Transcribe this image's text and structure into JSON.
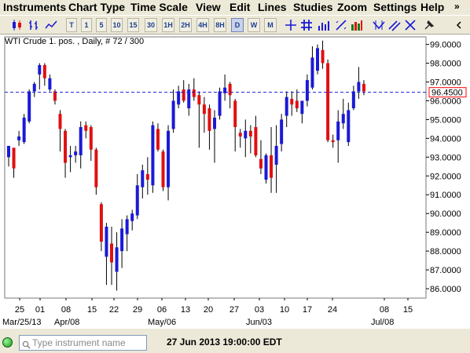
{
  "menu": {
    "items": [
      "Instruments",
      "Chart Type",
      "Time Scale",
      "View",
      "Edit",
      "Lines",
      "Studies",
      "Zoom",
      "Settings",
      "Help"
    ],
    "overflow_icon": "chevrons-right-icon"
  },
  "toolbar": {
    "timeframes": [
      "T",
      "1",
      "5",
      "10",
      "15",
      "30",
      "1H",
      "2H",
      "4H",
      "8H",
      "D",
      "W",
      "M"
    ],
    "active_timeframe": "D",
    "icons": [
      "candlestick-chart-icon",
      "bar-chart-icon",
      "line-chart-icon",
      "crosshair-icon",
      "grid-icon",
      "volume-icon",
      "draw-line-icon",
      "fibonacci-icon",
      "trend-icon",
      "parallel-lines-icon",
      "pin-icon"
    ]
  },
  "chart": {
    "title": "WTI Crude 1. pos. , Daily, # 72 / 300",
    "current_price_label": "96.4500",
    "colors": {
      "up": "#1a1ad6",
      "down": "#e01010",
      "wick": "#000000",
      "dashed_line": "#1a1ad6",
      "price_box": "#ff0000"
    }
  },
  "chart_data": {
    "type": "candlestick",
    "ylim": [
      85.5,
      99.4
    ],
    "y_ticks": [
      "99.0000",
      "98.0000",
      "97.0000",
      "96.0000",
      "95.0000",
      "94.0000",
      "93.0000",
      "92.0000",
      "91.0000",
      "90.0000",
      "89.0000",
      "88.0000",
      "87.0000",
      "86.0000"
    ],
    "x_day_labels": [
      "25",
      "01",
      "08",
      "15",
      "22",
      "29",
      "06",
      "13",
      "20",
      "27",
      "03",
      "10",
      "17",
      "24",
      "08",
      "15"
    ],
    "x_month_labels": [
      "Mar/25/13",
      "Apr/08",
      "May/06",
      "Jun/03",
      "Jul/08"
    ],
    "current_price": 96.45,
    "candles": [
      {
        "o": 93.0,
        "h": 93.6,
        "l": 92.5,
        "c": 93.6
      },
      {
        "o": 93.5,
        "h": 93.5,
        "l": 91.9,
        "c": 92.4
      },
      {
        "o": 93.9,
        "h": 94.4,
        "l": 93.6,
        "c": 94.1
      },
      {
        "o": 93.8,
        "h": 95.3,
        "l": 93.7,
        "c": 95.1
      },
      {
        "o": 94.9,
        "h": 96.6,
        "l": 94.8,
        "c": 96.5
      },
      {
        "o": 96.5,
        "h": 97.0,
        "l": 96.2,
        "c": 96.9
      },
      {
        "o": 97.4,
        "h": 98.0,
        "l": 96.6,
        "c": 97.9
      },
      {
        "o": 97.9,
        "h": 98.0,
        "l": 96.8,
        "c": 97.2
      },
      {
        "o": 96.6,
        "h": 97.4,
        "l": 96.5,
        "c": 97.2
      },
      {
        "o": 96.5,
        "h": 96.6,
        "l": 95.8,
        "c": 96.0
      },
      {
        "o": 95.3,
        "h": 95.5,
        "l": 93.3,
        "c": 94.5
      },
      {
        "o": 94.4,
        "h": 94.5,
        "l": 91.9,
        "c": 92.7
      },
      {
        "o": 93.0,
        "h": 93.6,
        "l": 92.2,
        "c": 93.1
      },
      {
        "o": 93.1,
        "h": 93.6,
        "l": 92.7,
        "c": 93.3
      },
      {
        "o": 93.1,
        "h": 94.9,
        "l": 92.4,
        "c": 94.6
      },
      {
        "o": 94.7,
        "h": 94.9,
        "l": 94.0,
        "c": 94.4
      },
      {
        "o": 94.6,
        "h": 94.7,
        "l": 92.8,
        "c": 93.4
      },
      {
        "o": 93.4,
        "h": 93.5,
        "l": 91.0,
        "c": 91.4
      },
      {
        "o": 90.5,
        "h": 90.6,
        "l": 88.0,
        "c": 88.5
      },
      {
        "o": 87.7,
        "h": 89.5,
        "l": 86.2,
        "c": 89.3
      },
      {
        "o": 88.4,
        "h": 89.3,
        "l": 86.2,
        "c": 87.4
      },
      {
        "o": 86.9,
        "h": 89.0,
        "l": 85.9,
        "c": 88.2
      },
      {
        "o": 88.0,
        "h": 89.7,
        "l": 87.1,
        "c": 89.2
      },
      {
        "o": 88.9,
        "h": 89.9,
        "l": 88.0,
        "c": 89.7
      },
      {
        "o": 89.6,
        "h": 90.2,
        "l": 89.1,
        "c": 90.0
      },
      {
        "o": 89.9,
        "h": 92.1,
        "l": 89.7,
        "c": 91.5
      },
      {
        "o": 91.4,
        "h": 92.6,
        "l": 90.8,
        "c": 92.3
      },
      {
        "o": 92.1,
        "h": 93.0,
        "l": 91.0,
        "c": 91.8
      },
      {
        "o": 91.5,
        "h": 94.9,
        "l": 91.1,
        "c": 94.7
      },
      {
        "o": 94.5,
        "h": 94.8,
        "l": 93.3,
        "c": 93.4
      },
      {
        "o": 93.3,
        "h": 93.4,
        "l": 91.2,
        "c": 91.4
      },
      {
        "o": 91.4,
        "h": 94.7,
        "l": 90.7,
        "c": 94.4
      },
      {
        "o": 94.5,
        "h": 96.6,
        "l": 94.3,
        "c": 96.0
      },
      {
        "o": 95.8,
        "h": 96.8,
        "l": 95.6,
        "c": 96.5
      },
      {
        "o": 96.6,
        "h": 97.1,
        "l": 95.9,
        "c": 96.0
      },
      {
        "o": 95.6,
        "h": 96.9,
        "l": 95.2,
        "c": 96.6
      },
      {
        "o": 96.6,
        "h": 97.2,
        "l": 96.0,
        "c": 96.2
      },
      {
        "o": 96.3,
        "h": 96.5,
        "l": 93.5,
        "c": 95.8
      },
      {
        "o": 95.8,
        "h": 96.2,
        "l": 94.3,
        "c": 95.3
      },
      {
        "o": 95.6,
        "h": 95.8,
        "l": 93.4,
        "c": 94.4
      },
      {
        "o": 94.5,
        "h": 95.5,
        "l": 92.7,
        "c": 95.1
      },
      {
        "o": 95.2,
        "h": 96.7,
        "l": 95.0,
        "c": 96.5
      },
      {
        "o": 96.4,
        "h": 97.4,
        "l": 96.0,
        "c": 96.7
      },
      {
        "o": 96.9,
        "h": 97.0,
        "l": 95.6,
        "c": 96.3
      },
      {
        "o": 96.0,
        "h": 96.1,
        "l": 93.3,
        "c": 94.6
      },
      {
        "o": 94.3,
        "h": 94.5,
        "l": 93.5,
        "c": 94.1
      },
      {
        "o": 94.0,
        "h": 95.0,
        "l": 93.0,
        "c": 94.4
      },
      {
        "o": 94.4,
        "h": 94.7,
        "l": 93.2,
        "c": 94.1
      },
      {
        "o": 94.6,
        "h": 95.2,
        "l": 93.0,
        "c": 93.1
      },
      {
        "o": 92.9,
        "h": 93.9,
        "l": 92.1,
        "c": 92.4
      },
      {
        "o": 91.8,
        "h": 93.2,
        "l": 91.6,
        "c": 93.1
      },
      {
        "o": 93.1,
        "h": 94.6,
        "l": 91.1,
        "c": 91.9
      },
      {
        "o": 92.6,
        "h": 94.7,
        "l": 91.1,
        "c": 93.6
      },
      {
        "o": 93.7,
        "h": 95.3,
        "l": 93.3,
        "c": 95.0
      },
      {
        "o": 95.2,
        "h": 96.5,
        "l": 94.6,
        "c": 96.2
      },
      {
        "o": 96.1,
        "h": 96.5,
        "l": 95.2,
        "c": 95.8
      },
      {
        "o": 96.0,
        "h": 96.6,
        "l": 95.4,
        "c": 95.6
      },
      {
        "o": 95.3,
        "h": 96.0,
        "l": 94.8,
        "c": 96.0
      },
      {
        "o": 96.0,
        "h": 97.4,
        "l": 95.7,
        "c": 97.1
      },
      {
        "o": 96.7,
        "h": 98.9,
        "l": 96.6,
        "c": 98.3
      },
      {
        "o": 97.6,
        "h": 99.0,
        "l": 97.4,
        "c": 98.8
      },
      {
        "o": 98.7,
        "h": 99.2,
        "l": 97.7,
        "c": 98.0
      },
      {
        "o": 98.0,
        "h": 98.2,
        "l": 93.8,
        "c": 93.9
      },
      {
        "o": 93.9,
        "h": 94.2,
        "l": 93.5,
        "c": 93.8
      },
      {
        "o": 93.9,
        "h": 95.5,
        "l": 92.7,
        "c": 94.9
      },
      {
        "o": 94.8,
        "h": 96.1,
        "l": 94.5,
        "c": 95.3
      },
      {
        "o": 93.8,
        "h": 95.9,
        "l": 93.6,
        "c": 95.5
      },
      {
        "o": 95.6,
        "h": 96.8,
        "l": 95.5,
        "c": 96.5
      },
      {
        "o": 96.5,
        "h": 97.8,
        "l": 96.1,
        "c": 97.0
      },
      {
        "o": 96.9,
        "h": 97.1,
        "l": 96.3,
        "c": 96.5
      }
    ]
  },
  "status": {
    "instrument_placeholder": "Type instrument name",
    "datetime": "27 Jun 2013 19:00:00 EDT"
  }
}
